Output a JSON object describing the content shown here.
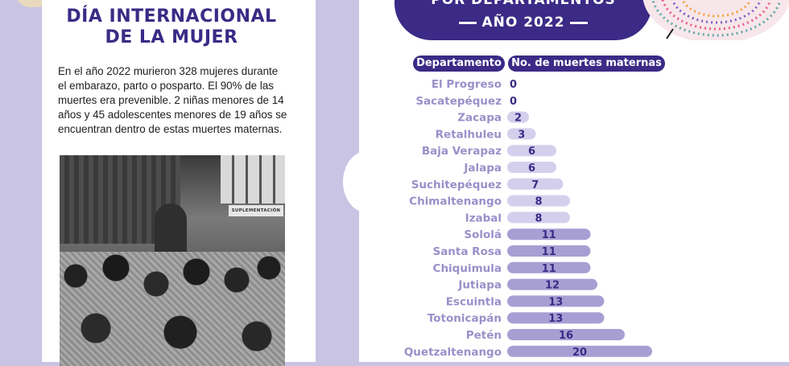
{
  "left": {
    "title_line1": "DÍA INTERNACIONAL",
    "title_line2": "DE LA MUJER",
    "paragraph": "En el año 2022 murieron 328 mujeres durante el embarazo, parto o posparto. El 90% de las muertes era prevenible. 2 niñas menores de 14 años y 45 adolescentes menores de 19 años se encuentran dentro de estas muertes maternas.",
    "photo_sign": "SUPLEMENTACIÓN"
  },
  "header": {
    "line1": "POR DEPARTAMENTOS",
    "line2": "AÑO 2022"
  },
  "table_headers": {
    "department": "Departamento",
    "deaths": "No. de muertes maternas"
  },
  "colors": {
    "primary": "#3b2a86",
    "label": "#9b8fc9",
    "bar_light": "#d4cfec",
    "bar_dark": "#a79fd3",
    "background": "#c9c3e4"
  },
  "chart_data": {
    "type": "bar",
    "orientation": "horizontal",
    "categories": [
      "El Progreso",
      "Sacatepéquez",
      "Zacapa",
      "Retalhuleu",
      "Baja Verapaz",
      "Jalapa",
      "Suchitepéquez",
      "Chimaltenango",
      "Izabal",
      "Sololá",
      "Santa Rosa",
      "Chiquimula",
      "Jutiapa",
      "Escuintla",
      "Totonicapán",
      "Petén",
      "Quetzaltenango"
    ],
    "values": [
      0,
      0,
      2,
      3,
      6,
      6,
      7,
      8,
      8,
      11,
      11,
      11,
      12,
      13,
      13,
      16,
      20
    ],
    "xlabel": "No. de muertes maternas",
    "ylabel": "Departamento"
  }
}
